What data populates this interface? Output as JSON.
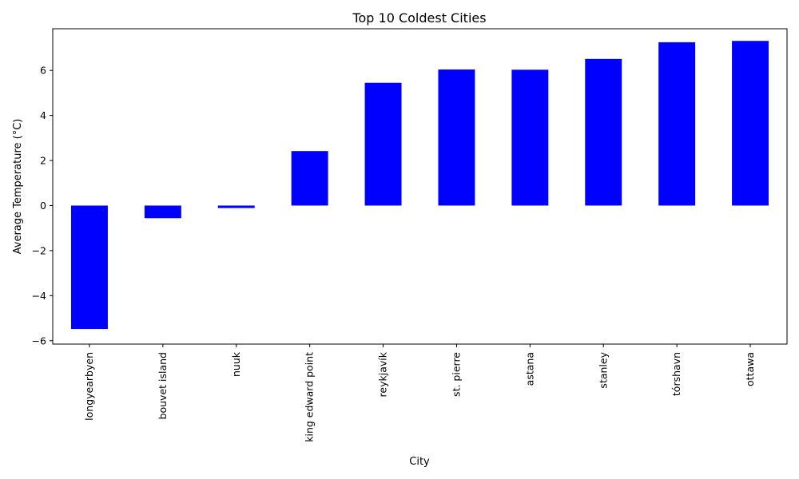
{
  "chart_data": {
    "type": "bar",
    "title": "Top 10 Coldest Cities",
    "xlabel": "City",
    "ylabel": "Average Temperature (°C)",
    "categories": [
      "longyearbyen",
      "bouvet island",
      "nuuk",
      "king edward point",
      "reykjavík",
      "st. pierre",
      "astana",
      "stanley",
      "tórshavn",
      "ottawa"
    ],
    "values": [
      -5.48,
      -0.56,
      -0.11,
      2.42,
      5.45,
      6.04,
      6.03,
      6.51,
      7.25,
      7.31
    ],
    "ylim": [
      -6.15,
      7.85
    ],
    "yticks": [
      -6,
      -4,
      -2,
      0,
      2,
      4,
      6
    ],
    "ytick_labels": [
      "−6",
      "−4",
      "−2",
      "0",
      "2",
      "4",
      "6"
    ],
    "bar_color": "#0000ff",
    "grid": false,
    "legend": "none"
  }
}
